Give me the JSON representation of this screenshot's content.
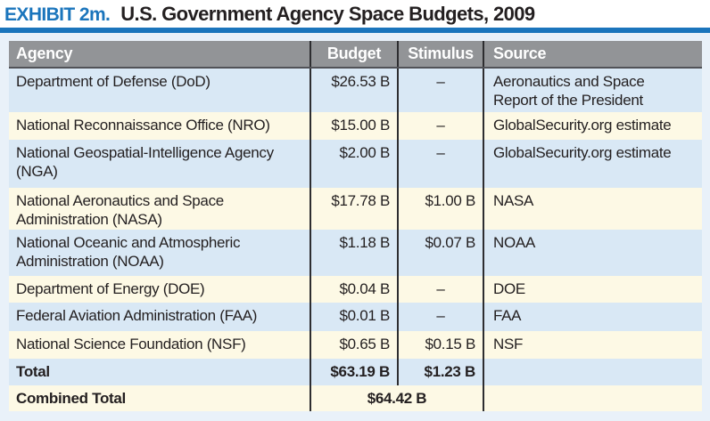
{
  "exhibit": {
    "label": "EXHIBIT 2m.",
    "title": "U.S. Government Agency Space Budgets, 2009"
  },
  "table": {
    "headers": {
      "agency": "Agency",
      "budget": "Budget",
      "stimulus": "Stimulus",
      "source": "Source"
    },
    "rows": [
      {
        "agency": "Department of Defense (DoD)",
        "budget": "$26.53 B",
        "stimulus": "–",
        "source": "Aeronautics and Space Report of the President"
      },
      {
        "agency": "National Reconnaissance Office (NRO)",
        "budget": "$15.00 B",
        "stimulus": "–",
        "source": "GlobalSecurity.org estimate"
      },
      {
        "agency": "National Geospatial-Intelligence Agency (NGA)",
        "budget": "$2.00 B",
        "stimulus": "–",
        "source": "GlobalSecurity.org estimate"
      },
      {
        "agency": "National Aeronautics and Space Administration (NASA)",
        "budget": "$17.78 B",
        "stimulus": "$1.00 B",
        "source": "NASA"
      },
      {
        "agency": "National Oceanic and Atmospheric Administration (NOAA)",
        "budget": "$1.18 B",
        "stimulus": "$0.07 B",
        "source": "NOAA"
      },
      {
        "agency": "Department of Energy (DOE)",
        "budget": "$0.04 B",
        "stimulus": "–",
        "source": "DOE"
      },
      {
        "agency": "Federal Aviation Administration (FAA)",
        "budget": "$0.01 B",
        "stimulus": "–",
        "source": "FAA"
      },
      {
        "agency": "National Science Foundation (NSF)",
        "budget": "$0.65 B",
        "stimulus": "$0.15 B",
        "source": "NSF"
      }
    ],
    "total": {
      "label": "Total",
      "budget": "$63.19 B",
      "stimulus": "$1.23 B"
    },
    "combined": {
      "label": "Combined Total",
      "value": "$64.42 B"
    }
  },
  "colors": {
    "accent_blue": "#1b75bc",
    "header_gray": "#929497",
    "row_blue": "#d9e8f5",
    "row_cream": "#fdf9e5",
    "frame_blue": "#e9f1f9",
    "text": "#231f20"
  }
}
